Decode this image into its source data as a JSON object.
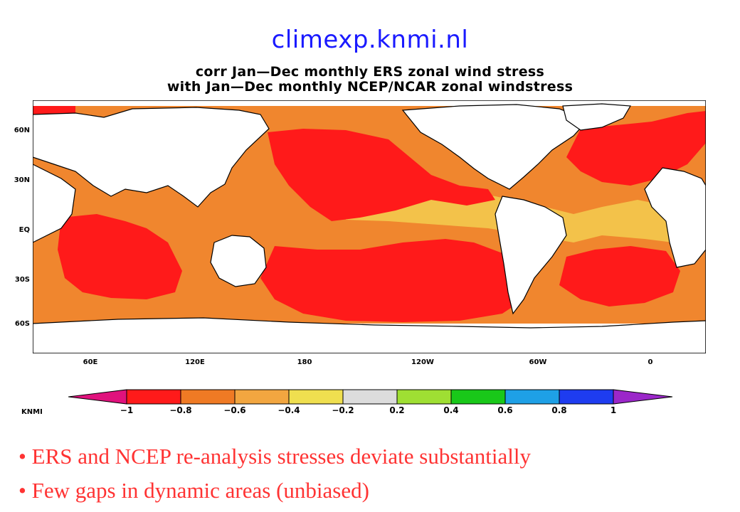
{
  "site": "climexp.knmi.nl",
  "plot_title": {
    "line1": "corr Jan—Dec monthly ERS zonal wind stress",
    "line2": "with Jan—Dec monthly NCEP/NCAR zonal windstress"
  },
  "map": {
    "lat_labels": [
      "60N",
      "30N",
      "EQ",
      "30S",
      "60S"
    ],
    "lon_labels": [
      "60E",
      "120E",
      "180",
      "120W",
      "60W",
      "0"
    ]
  },
  "colorbar": {
    "labels": [
      "−1",
      "−0.8",
      "−0.6",
      "−0.4",
      "−0.2",
      "0.2",
      "0.4",
      "0.6",
      "0.8",
      "1"
    ],
    "colors": [
      "#ff1a1a",
      "#ef7a24",
      "#f2a640",
      "#efdf4f",
      "#dcdcdc",
      "#9fdf33",
      "#19c819",
      "#1ea0e6",
      "#1e3cf0"
    ],
    "end_colors": [
      "#e0127d",
      "#9b27c9"
    ],
    "logo": "KNMI"
  },
  "bullets": [
    "ERS and NCEP re-analysis stresses deviate substantially",
    "Few gaps in dynamic areas (unbiased)"
  ]
}
